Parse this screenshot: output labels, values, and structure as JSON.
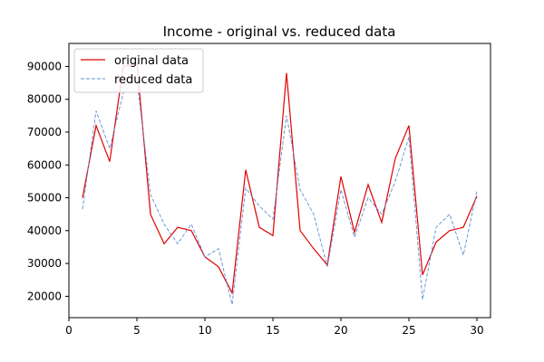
{
  "chart_data": {
    "type": "line",
    "title": "Income - original vs. reduced data",
    "xlabel": "",
    "ylabel": "",
    "xlim": [
      0,
      31
    ],
    "ylim": [
      13500,
      97000
    ],
    "x_ticks": [
      0,
      5,
      10,
      15,
      20,
      25,
      30
    ],
    "y_ticks": [
      20000,
      30000,
      40000,
      50000,
      60000,
      70000,
      80000,
      90000
    ],
    "grid": false,
    "legend_position": "top-left",
    "x": [
      1,
      2,
      3,
      4,
      5,
      6,
      7,
      8,
      9,
      10,
      11,
      12,
      13,
      14,
      15,
      16,
      17,
      18,
      19,
      20,
      21,
      22,
      23,
      24,
      25,
      26,
      27,
      28,
      29,
      30
    ],
    "series": [
      {
        "name": "original data",
        "color": "#e00000",
        "style": "solid",
        "values": [
          50000,
          72000,
          61000,
          90000,
          91000,
          45000,
          36000,
          41000,
          40000,
          32000,
          29000,
          21000,
          58500,
          41000,
          38500,
          88000,
          40000,
          34500,
          29500,
          56500,
          39500,
          54000,
          42500,
          62000,
          72000,
          26500,
          36500,
          40000,
          41000,
          50500
        ]
      },
      {
        "name": "reduced data",
        "color": "#5b8fd6",
        "style": "dashed",
        "values": [
          46500,
          76500,
          65000,
          82000,
          86000,
          51000,
          42000,
          36000,
          42000,
          32000,
          34500,
          17500,
          53000,
          47500,
          43500,
          75000,
          52500,
          45000,
          29000,
          52500,
          38000,
          50000,
          45000,
          55000,
          68500,
          19000,
          41000,
          45000,
          32500,
          52000
        ]
      }
    ]
  }
}
